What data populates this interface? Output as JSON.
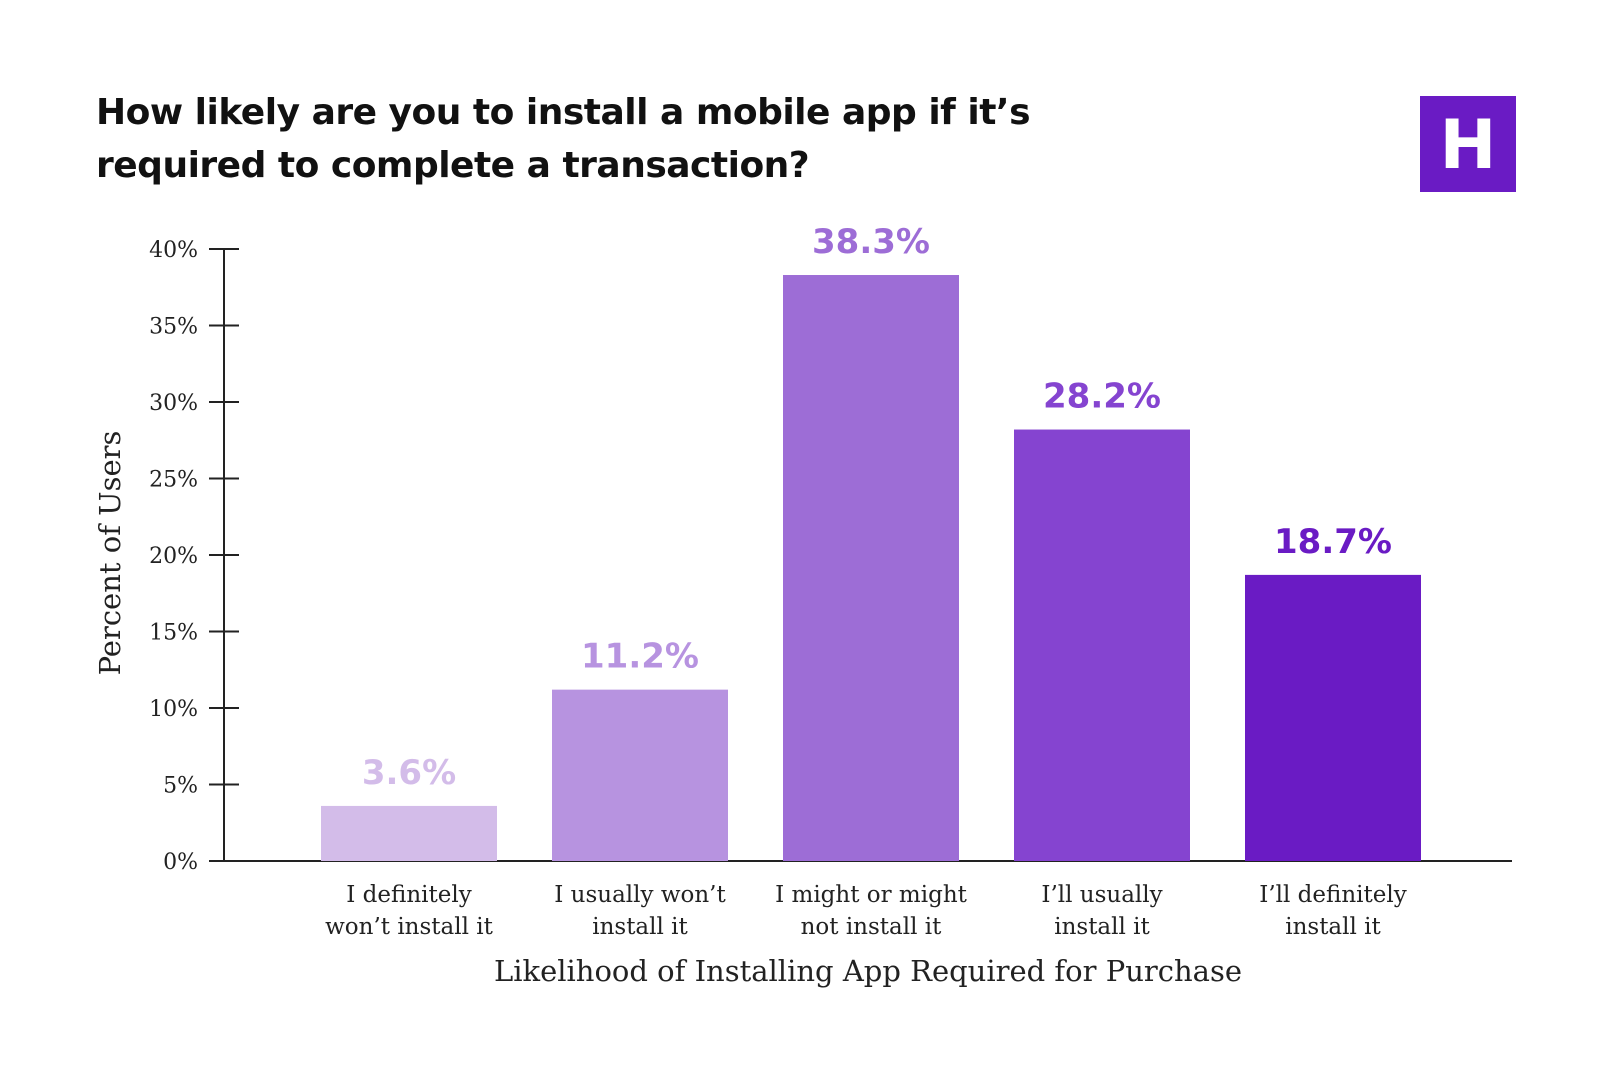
{
  "title_lines": [
    "How likely are you to install a mobile app if it’s",
    "required to complete a transaction?"
  ],
  "logo": {
    "letter": "H",
    "color": "#6a1bc4"
  },
  "chart_data": {
    "type": "bar",
    "title": "How likely are you to install a mobile app if it’s required to complete a transaction?",
    "xlabel": "Likelihood of Installing App Required for Purchase",
    "ylabel": "Percent of Users",
    "categories": [
      [
        "I definitely",
        "won’t install it"
      ],
      [
        "I usually won’t",
        "install it"
      ],
      [
        "I might or might",
        "not install it"
      ],
      [
        "I’ll usually",
        "install it"
      ],
      [
        "I’ll definitely",
        "install it"
      ]
    ],
    "values": [
      3.6,
      11.2,
      38.3,
      28.2,
      18.7
    ],
    "data_labels": [
      "3.6%",
      "11.2%",
      "38.3%",
      "28.2%",
      "18.7%"
    ],
    "bar_colors": [
      "#d3bce9",
      "#b793e0",
      "#9d6dd6",
      "#8544d0",
      "#6a1bc4"
    ],
    "ylim": [
      0,
      40
    ],
    "yticks": [
      0,
      5,
      10,
      15,
      20,
      25,
      30,
      35,
      40
    ],
    "ytick_labels": [
      "0%",
      "5%",
      "10%",
      "15%",
      "20%",
      "25%",
      "30%",
      "35%",
      "40%"
    ],
    "grid": false,
    "legend": "none"
  }
}
